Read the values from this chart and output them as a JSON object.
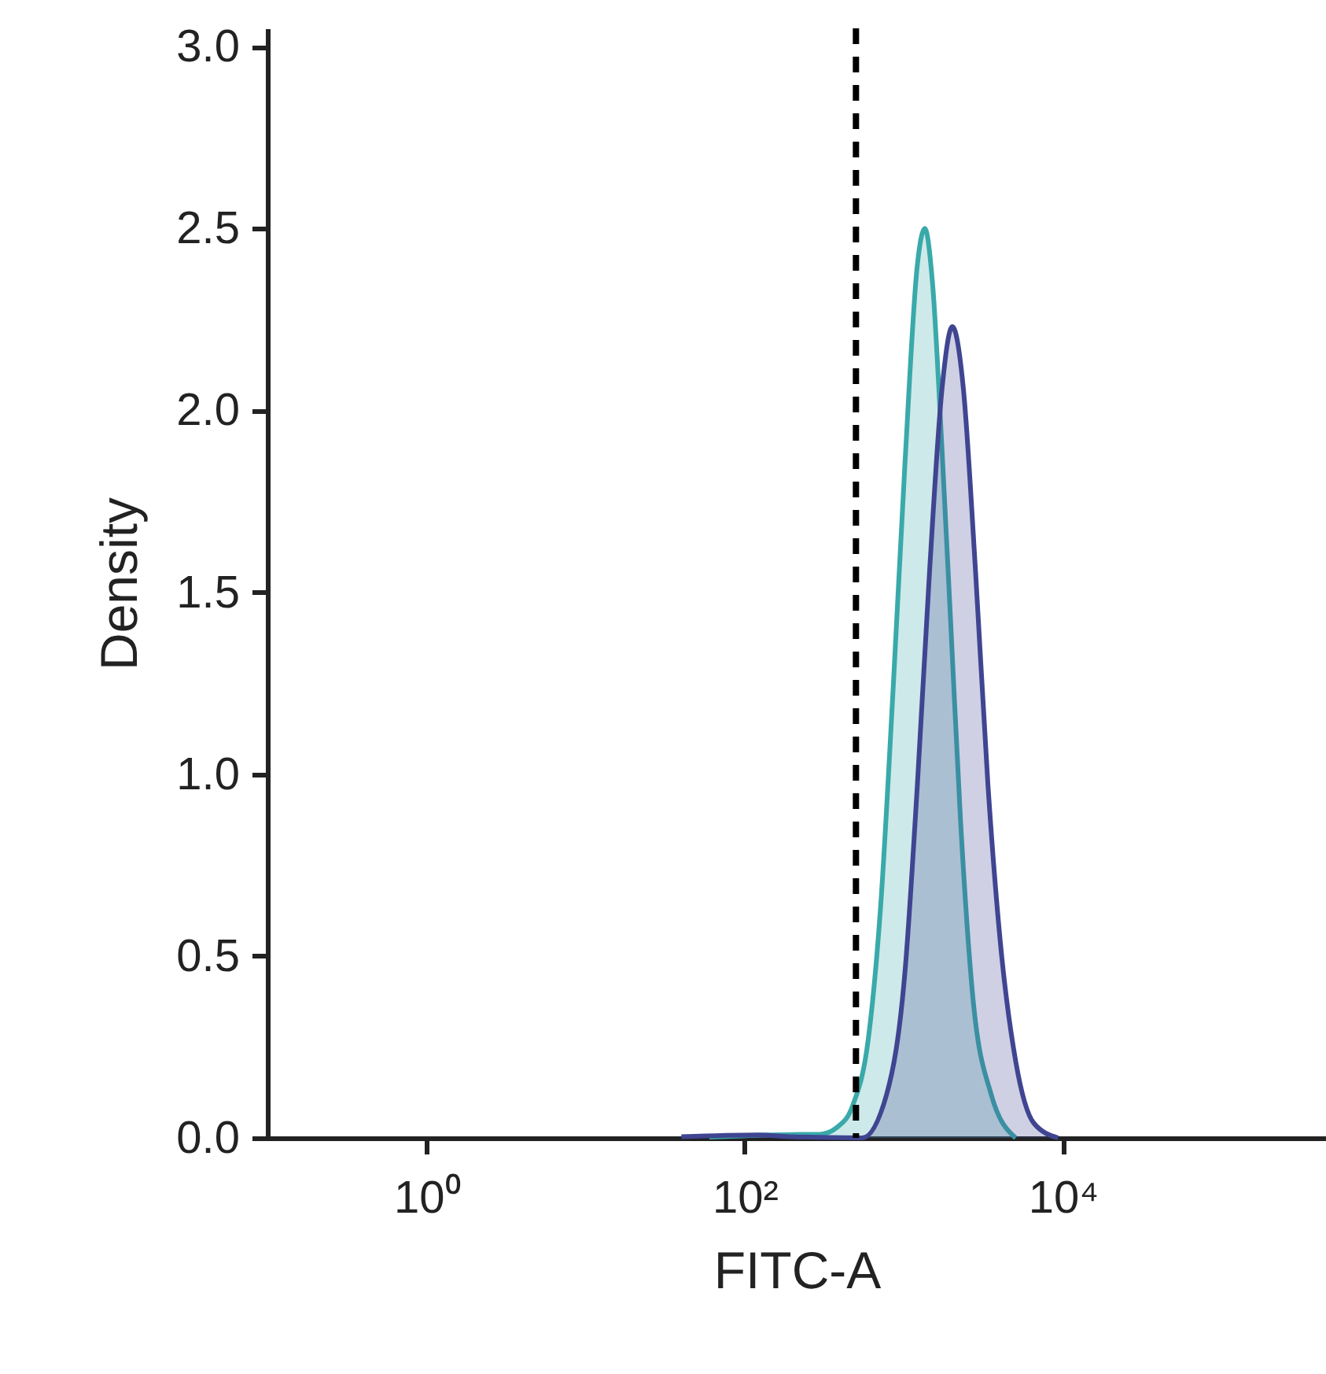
{
  "chart_data": {
    "type": "area",
    "xlabel": "FITC-A",
    "ylabel": "Density",
    "log": "x",
    "xlim": [
      0.1,
      450000
    ],
    "xticks": [
      {
        "value": 1,
        "label": "10⁰"
      },
      {
        "value": 100,
        "label": "10²"
      },
      {
        "value": 10000,
        "label": "10⁴"
      }
    ],
    "ylim": [
      0,
      3.05
    ],
    "yticks": [
      {
        "value": 0,
        "label": "0.0"
      },
      {
        "value": 0.5,
        "label": "0.5"
      },
      {
        "value": 1,
        "label": "1.0"
      },
      {
        "value": 1.5,
        "label": "1.5"
      },
      {
        "value": 2,
        "label": "2.0"
      },
      {
        "value": 2.5,
        "label": "2.5"
      },
      {
        "value": 3,
        "label": "3.0"
      }
    ],
    "grid": false,
    "series": [
      {
        "color": "#3aa9a9",
        "x": [
          60,
          250,
          295,
          383,
          478,
          597,
          713,
          853,
          1018,
          1216,
          1354,
          1514,
          1738,
          1983,
          2266,
          2710,
          3537,
          5040
        ],
        "values": [
          0.002,
          0.01,
          0.01,
          0.03,
          0.09,
          0.27,
          0.63,
          1.22,
          1.86,
          2.4,
          2.5,
          2.35,
          1.89,
          1.39,
          0.88,
          0.39,
          0.12,
          0
        ]
      },
      {
        "color": "#3f4591",
        "x": [
          40,
          120,
          200,
          548,
          780,
          1018,
          1216,
          1452,
          1738,
          2018,
          2366,
          2820,
          3378,
          4036,
          5050,
          6577,
          9330
        ],
        "values": [
          0.003,
          0.008,
          0.003,
          0,
          0.12,
          0.46,
          0.97,
          1.56,
          2.06,
          2.23,
          2.06,
          1.56,
          0.97,
          0.54,
          0.21,
          0.04,
          0
        ]
      }
    ],
    "ref_lines": [
      {
        "axis": "x",
        "value": 500,
        "color": "#000000",
        "line_style": "dashed"
      }
    ]
  }
}
